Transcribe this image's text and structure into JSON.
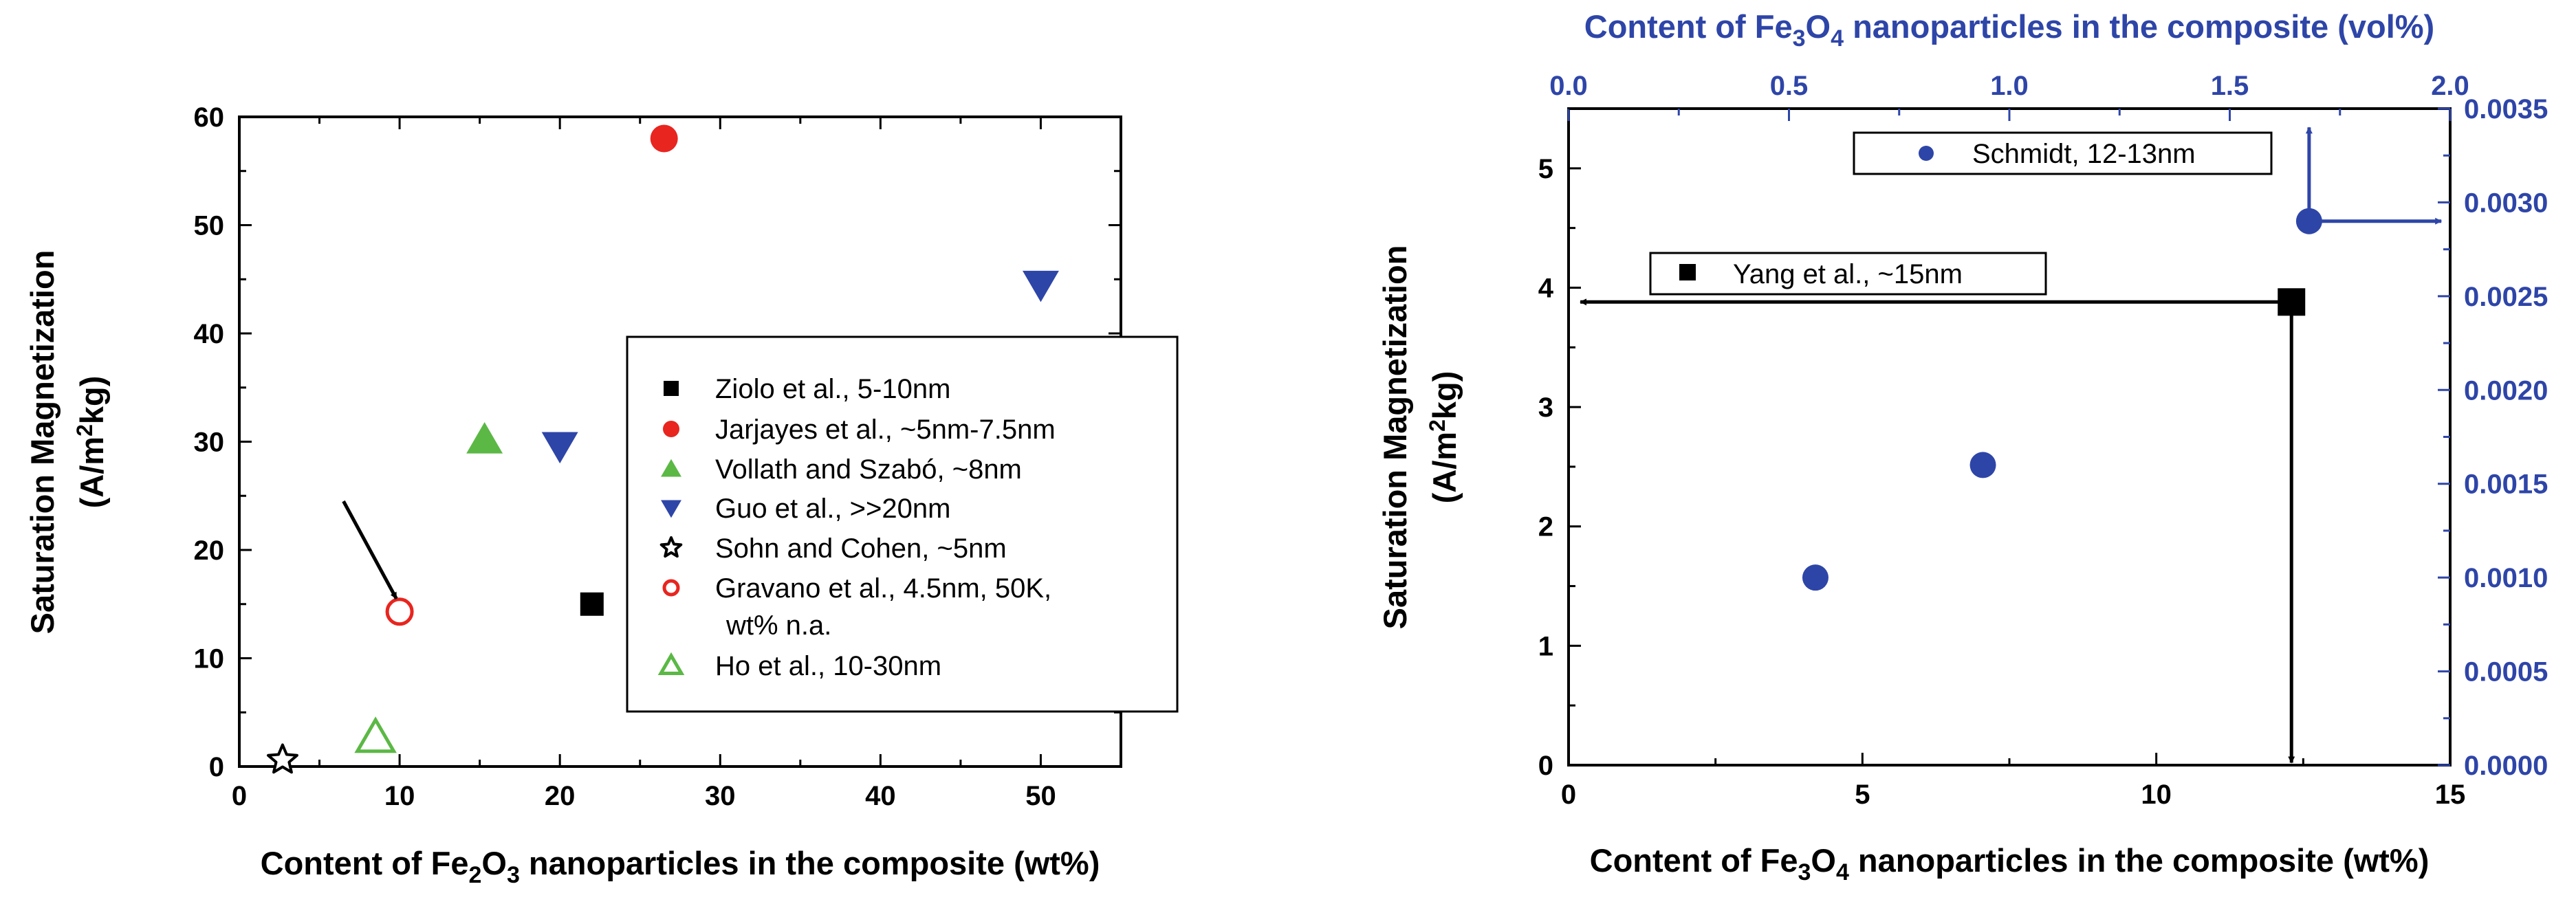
{
  "chart_data": [
    {
      "type": "scatter",
      "xlabel": {
        "pre": "Content of Fe",
        "sub1": "2",
        "mid": "O",
        "sub2": "3",
        "post": " nanoparticles in the composite (wt%)"
      },
      "ylabel": {
        "line1": "Saturation Magnetization",
        "line2_pre": "(A/m",
        "line2_sup": "2",
        "line2_post": "kg)"
      },
      "xlim": [
        0,
        55
      ],
      "ylim": [
        0,
        60
      ],
      "xticks": [
        0,
        10,
        20,
        30,
        40,
        50
      ],
      "yticks": [
        0,
        10,
        20,
        30,
        40,
        50,
        60
      ],
      "series": [
        {
          "name": "Ziolo et al., 5-10nm",
          "marker": "square",
          "color": "#000000",
          "filled": true,
          "points": [
            [
              22,
              15
            ]
          ]
        },
        {
          "name": "Jarjayes et al., ~5nm-7.5nm",
          "marker": "circle",
          "color": "#e8251f",
          "filled": true,
          "points": [
            [
              26.5,
              58
            ]
          ]
        },
        {
          "name": "Vollath and Szabó, ~8nm",
          "marker": "triangle-up",
          "color": "#5bb845",
          "filled": true,
          "points": [
            [
              15.3,
              30.2
            ]
          ]
        },
        {
          "name": "Guo et al., >>20nm",
          "marker": "triangle-down",
          "color": "#2e45a8",
          "filled": true,
          "points": [
            [
              20,
              29.6
            ],
            [
              50,
              44.5
            ]
          ]
        },
        {
          "name": "Sohn and Cohen, ~5nm",
          "marker": "star",
          "color": "#000000",
          "filled": false,
          "points": [
            [
              2.7,
              0.6
            ]
          ]
        },
        {
          "name": "Gravano et al., 4.5nm, 50K,",
          "name_line2": "wt% n.a.",
          "marker": "circle",
          "color": "#e8251f",
          "filled": false,
          "points": [
            [
              10,
              14.3
            ]
          ]
        },
        {
          "name": "Ho et al., 10-30nm",
          "marker": "triangle-up",
          "color": "#5bb845",
          "filled": false,
          "points": [
            [
              8.5,
              2.7
            ]
          ]
        }
      ],
      "annotations": [
        {
          "type": "arrow",
          "from": [
            6.5,
            24.5
          ],
          "to": [
            9.8,
            15.5
          ],
          "color": "#000000"
        }
      ],
      "legend_placement": "center-right",
      "grid": false
    },
    {
      "type": "scatter",
      "xlabel": {
        "pre": "Content of Fe",
        "sub1": "3",
        "mid": "O",
        "sub2": "4",
        "post": " nanoparticles in the composite (wt%)"
      },
      "x2label": {
        "pre": "Content of Fe",
        "sub1": "3",
        "mid": "O",
        "sub2": "4",
        "post": " nanoparticles in the composite (vol%)"
      },
      "ylabel": {
        "line1": "Saturation Magnetization",
        "line2_pre": "(A/m",
        "line2_sup": "2",
        "line2_post": "kg)"
      },
      "xlim": [
        0,
        15
      ],
      "ylim": [
        0,
        5.5
      ],
      "x2lim": [
        0,
        2.0
      ],
      "y2lim": [
        0,
        0.0035
      ],
      "xticks": [
        0,
        5,
        10,
        15
      ],
      "yticks": [
        0,
        1,
        2,
        3,
        4,
        5
      ],
      "x2ticks": [
        "0.0",
        "0.5",
        "1.0",
        "1.5",
        "2.0"
      ],
      "y2ticks": [
        "0.0000",
        "0.0005",
        "0.0010",
        "0.0015",
        "0.0020",
        "0.0025",
        "0.0030",
        "0.0035"
      ],
      "series": [
        {
          "name": "Yang et al., ~15nm",
          "marker": "square",
          "color": "#000000",
          "filled": true,
          "axes": "bottom-left",
          "points": [
            [
              12.3,
              3.88
            ]
          ]
        },
        {
          "name": "Schmidt, 12-13nm",
          "marker": "circle",
          "color": "#2e45a8",
          "filled": true,
          "axes": "top-right",
          "points": [
            [
              0.56,
              0.001
            ],
            [
              0.94,
              0.0016
            ],
            [
              1.68,
              0.0029
            ]
          ]
        }
      ],
      "annotations": [
        {
          "type": "arrow",
          "axes": "bottom-left",
          "from": [
            12.3,
            3.88
          ],
          "to": [
            0.2,
            3.88
          ],
          "color": "#000000"
        },
        {
          "type": "arrow",
          "axes": "bottom-left",
          "from": [
            12.3,
            3.88
          ],
          "to": [
            12.3,
            0.02
          ],
          "color": "#000000"
        },
        {
          "type": "arrow",
          "axes": "top-right",
          "from": [
            1.68,
            0.0029
          ],
          "to": [
            1.68,
            0.0034
          ],
          "color": "#2e45a8"
        },
        {
          "type": "arrow",
          "axes": "top-right",
          "from": [
            1.68,
            0.0029
          ],
          "to": [
            1.98,
            0.0029
          ],
          "color": "#2e45a8"
        }
      ],
      "grid": false
    }
  ]
}
